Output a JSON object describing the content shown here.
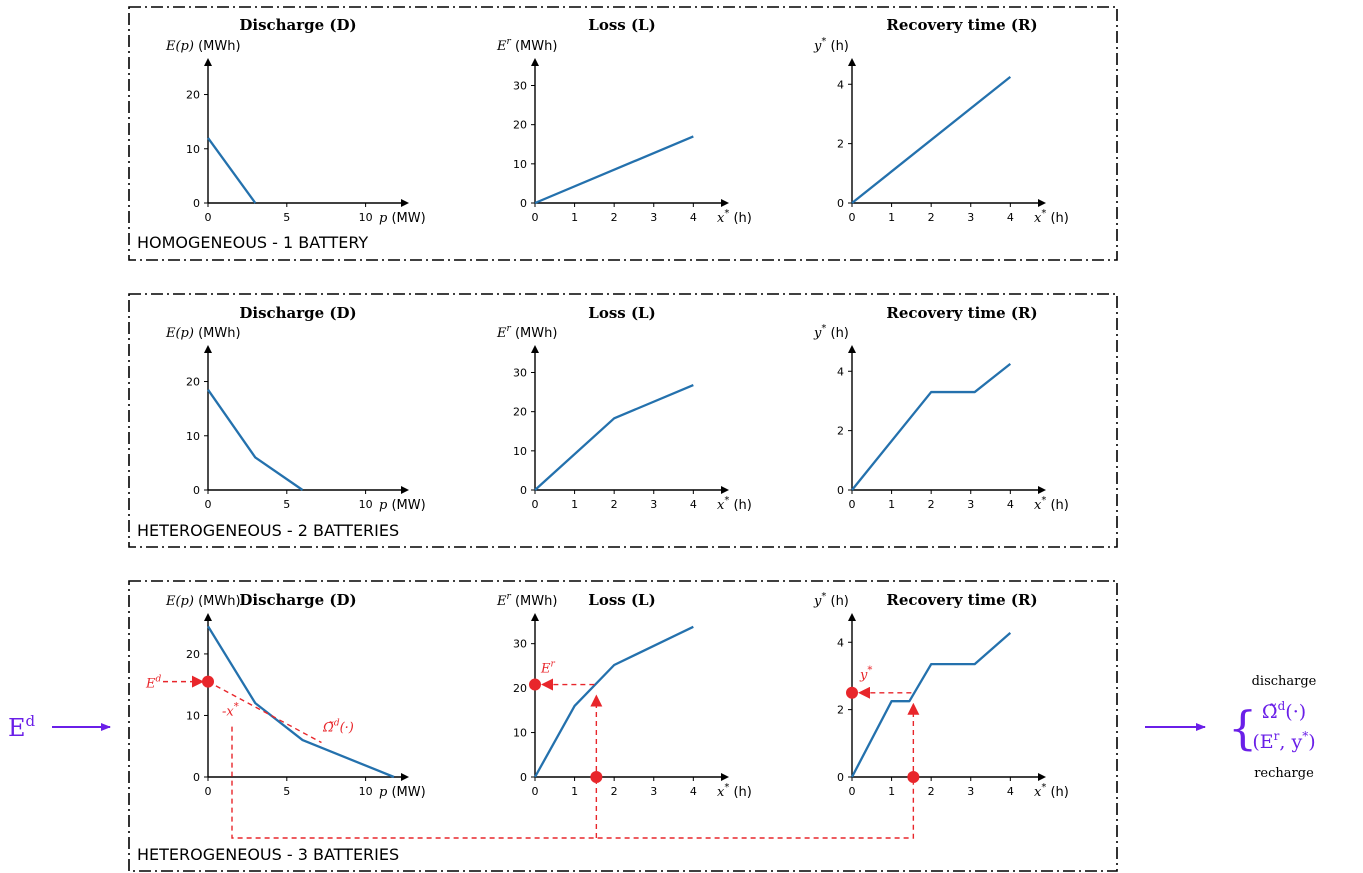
{
  "colors": {
    "series": "#2471ad",
    "annotation": "#e8262b",
    "flow": "#6a1fe8",
    "frame": "#000000"
  },
  "panels": [
    {
      "label": "HOMOGENEOUS - 1 BATTERY"
    },
    {
      "label": "HETEROGENEOUS - 2 BATTERIES"
    },
    {
      "label": "HETEROGENEOUS - 3 BATTERIES"
    }
  ],
  "chart_data": [
    {
      "panel": 0,
      "kind": "D",
      "type": "line",
      "title": "Discharge (D)",
      "ylabel_math": "E(p)",
      "ylabel_unit": "(MWh)",
      "xlabel_math": "p",
      "xlabel_unit": "(MW)",
      "xlim": [
        0,
        12.5
      ],
      "ylim": [
        0,
        26
      ],
      "xticks": [
        0,
        5,
        10
      ],
      "yticks": [
        0,
        10,
        20
      ],
      "x": [
        0,
        3
      ],
      "y": [
        12,
        0
      ]
    },
    {
      "panel": 0,
      "kind": "L",
      "type": "line",
      "title": "Loss (L)",
      "ylabel_math": "E^r",
      "ylabel_unit": "(MWh)",
      "xlabel_math": "x*",
      "xlabel_unit": "(h)",
      "xlim": [
        0,
        4.8
      ],
      "ylim": [
        0,
        36
      ],
      "xticks": [
        0,
        1,
        2,
        3,
        4
      ],
      "yticks": [
        0,
        10,
        20,
        30
      ],
      "x": [
        0,
        4
      ],
      "y": [
        0,
        17
      ]
    },
    {
      "panel": 0,
      "kind": "R",
      "type": "line",
      "title": "Recovery time (R)",
      "ylabel_math": "y*",
      "ylabel_unit": "(h)",
      "xlabel_math": "x*",
      "xlabel_unit": "(h)",
      "xlim": [
        0,
        4.8
      ],
      "ylim": [
        0,
        4.75
      ],
      "xticks": [
        0,
        1,
        2,
        3,
        4
      ],
      "yticks": [
        0,
        2,
        4
      ],
      "x": [
        0,
        4
      ],
      "y": [
        0,
        4.25
      ]
    },
    {
      "panel": 1,
      "kind": "D",
      "type": "line",
      "title": "Discharge (D)",
      "ylabel_math": "E(p)",
      "ylabel_unit": "(MWh)",
      "xlabel_math": "p",
      "xlabel_unit": "(MW)",
      "xlim": [
        0,
        12.5
      ],
      "ylim": [
        0,
        26
      ],
      "xticks": [
        0,
        5,
        10
      ],
      "yticks": [
        0,
        10,
        20
      ],
      "x": [
        0,
        3,
        6
      ],
      "y": [
        18.5,
        6,
        0
      ]
    },
    {
      "panel": 1,
      "kind": "L",
      "type": "line",
      "title": "Loss (L)",
      "ylabel_math": "E^r",
      "ylabel_unit": "(MWh)",
      "xlabel_math": "x*",
      "xlabel_unit": "(h)",
      "xlim": [
        0,
        4.8
      ],
      "ylim": [
        0,
        36
      ],
      "xticks": [
        0,
        1,
        2,
        3,
        4
      ],
      "yticks": [
        0,
        10,
        20,
        30
      ],
      "x": [
        0,
        2,
        4
      ],
      "y": [
        0,
        18.3,
        26.8
      ]
    },
    {
      "panel": 1,
      "kind": "R",
      "type": "line",
      "title": "Recovery time (R)",
      "ylabel_math": "y*",
      "ylabel_unit": "(h)",
      "xlabel_math": "x*",
      "xlabel_unit": "(h)",
      "xlim": [
        0,
        4.8
      ],
      "ylim": [
        0,
        4.75
      ],
      "xticks": [
        0,
        1,
        2,
        3,
        4
      ],
      "yticks": [
        0,
        2,
        4
      ],
      "x": [
        0,
        2,
        3.1,
        4
      ],
      "y": [
        0,
        3.3,
        3.3,
        4.25
      ]
    },
    {
      "panel": 2,
      "kind": "D",
      "type": "line",
      "title": "Discharge (D)",
      "ylabel_math": "E(p)",
      "ylabel_unit": "(MWh)",
      "xlabel_math": "p",
      "xlabel_unit": "(MW)",
      "xlim": [
        0,
        12.5
      ],
      "ylim": [
        0,
        26
      ],
      "xticks": [
        0,
        5,
        10
      ],
      "yticks": [
        0,
        10,
        20
      ],
      "x": [
        0,
        3,
        6,
        11.8
      ],
      "y": [
        24.5,
        12,
        6,
        0
      ]
    },
    {
      "panel": 2,
      "kind": "L",
      "type": "line",
      "title": "Loss (L)",
      "ylabel_math": "E^r",
      "ylabel_unit": "(MWh)",
      "xlabel_math": "x*",
      "xlabel_unit": "(h)",
      "xlim": [
        0,
        4.8
      ],
      "ylim": [
        0,
        36
      ],
      "xticks": [
        0,
        1,
        2,
        3,
        4
      ],
      "yticks": [
        0,
        10,
        20,
        30
      ],
      "x": [
        0,
        1,
        2,
        4
      ],
      "y": [
        0,
        16,
        25.2,
        33.8
      ]
    },
    {
      "panel": 2,
      "kind": "R",
      "type": "line",
      "title": "Recovery time (R)",
      "ylabel_math": "y*",
      "ylabel_unit": "(h)",
      "xlabel_math": "x*",
      "xlabel_unit": "(h)",
      "xlim": [
        0,
        4.8
      ],
      "ylim": [
        0,
        4.75
      ],
      "xticks": [
        0,
        1,
        2,
        3,
        4
      ],
      "yticks": [
        0,
        2,
        4
      ],
      "x": [
        0,
        1,
        1.45,
        2,
        3.1,
        4
      ],
      "y": [
        0,
        2.25,
        2.25,
        3.35,
        3.35,
        4.28
      ]
    }
  ],
  "annotations": {
    "ed_value": 15.5,
    "x_star_value": 1.55,
    "er_value": 20.8,
    "y_star_value": 2.5,
    "ed_label": "E",
    "ed_sup": "d",
    "neg_x_label": "-x",
    "neg_x_sup": "*",
    "omega_label": "Ω̃",
    "omega_sup": "d",
    "omega_tail": "(·)",
    "er_label": "E",
    "er_sup": "r",
    "y_label": "y",
    "y_sup": "*"
  },
  "flow": {
    "input_symbol": "E",
    "input_sup": "d",
    "output_top": "discharge",
    "output_bottom": "recharge",
    "output_line1": "Ω̃",
    "output_line1_sup": "d",
    "output_line1_tail": "(·)",
    "output_line2": "(E",
    "output_line2_sup": "r",
    "output_line2_tail": ",  y",
    "output_line2_sup2": "*",
    "output_line2_end": ")"
  }
}
